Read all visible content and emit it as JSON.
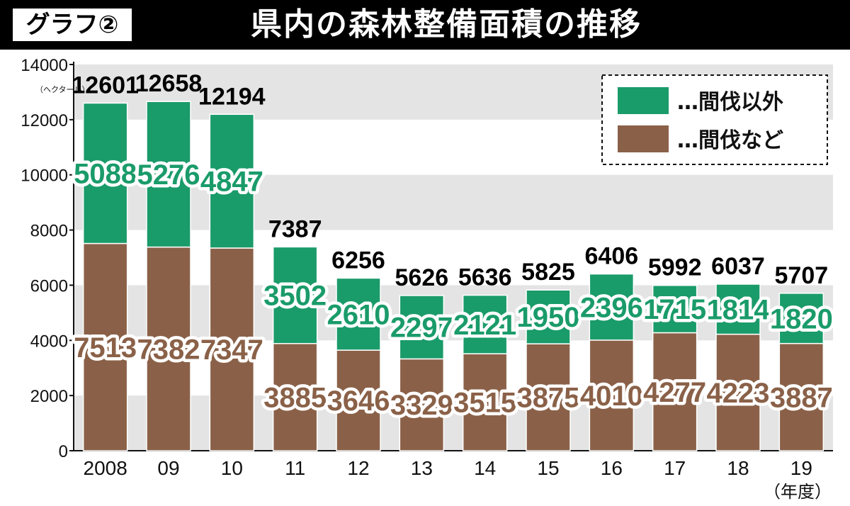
{
  "header": {
    "badge": "グラフ②",
    "title": "県内の森林整備面積の推移"
  },
  "colors": {
    "other": "#1a9b6a",
    "thinning": "#8a6148",
    "band": "#e4e4e4",
    "header_bg": "#000000"
  },
  "chart_data": {
    "type": "bar",
    "stacked": true,
    "title": "県内の森林整備面積の推移",
    "ylabel_unit": "（ヘクタール）",
    "xlabel_unit": "（年度）",
    "ylim": [
      0,
      14000
    ],
    "yticks": [
      0,
      2000,
      4000,
      6000,
      8000,
      10000,
      12000,
      14000
    ],
    "categories": [
      "2008",
      "09",
      "10",
      "11",
      "12",
      "13",
      "14",
      "15",
      "16",
      "17",
      "18",
      "19"
    ],
    "series": [
      {
        "name": "…間伐など",
        "values": [
          7513,
          7382,
          7347,
          3885,
          3646,
          3329,
          3515,
          3875,
          4010,
          4277,
          4223,
          3887
        ]
      },
      {
        "name": "…間伐以外",
        "values": [
          5088,
          5276,
          4847,
          3502,
          2610,
          2297,
          2121,
          1950,
          2396,
          1715,
          1814,
          1820
        ]
      }
    ],
    "totals": [
      12601,
      12658,
      12194,
      7387,
      6256,
      5626,
      5636,
      5825,
      6406,
      5992,
      6037,
      5707
    ],
    "legend_position": "top-right",
    "grid": "alternating-bands"
  }
}
